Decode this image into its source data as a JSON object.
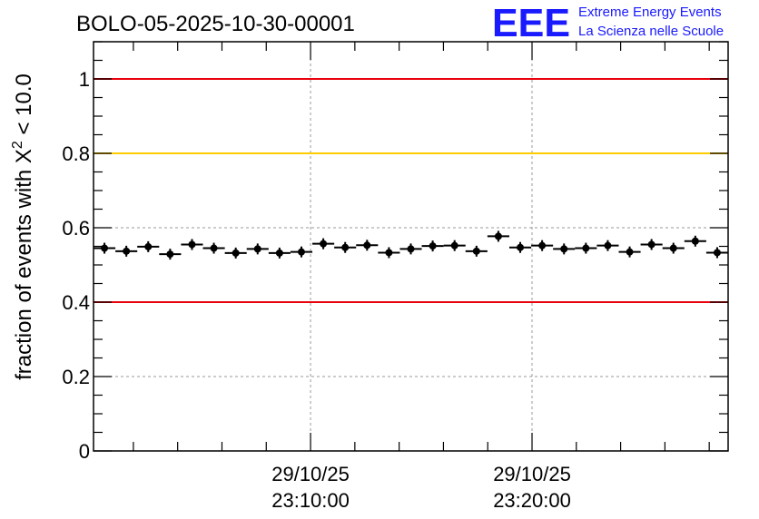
{
  "chart_data": {
    "type": "scatter",
    "title": "BOLO-05-2025-10-30-00001",
    "xlabel": "",
    "ylabel_main": "fraction of events with ",
    "ylabel_symbol": "X",
    "ylabel_sup": "2",
    "ylabel_tail": " < 10.0",
    "ylim": [
      0,
      1.1
    ],
    "xlim": [
      0,
      1
    ],
    "yticks": [
      0,
      0.2,
      0.4,
      0.6,
      0.8,
      1
    ],
    "ytick_labels": [
      "0",
      "0.2",
      "0.4",
      "0.6",
      "0.8",
      "1"
    ],
    "xticks": [
      {
        "pos": 0.342,
        "date": "29/10/25",
        "time": "23:10:00"
      },
      {
        "pos": 0.691,
        "date": "29/10/25",
        "time": "23:20:00"
      }
    ],
    "grid": true,
    "reference_lines": [
      {
        "y": 1.0,
        "color": "#e8000b"
      },
      {
        "y": 0.8,
        "color": "#ffcc00"
      },
      {
        "y": 0.4,
        "color": "#e8000b"
      }
    ],
    "series": [
      {
        "name": "fraction",
        "values": [
          0.545,
          0.537,
          0.549,
          0.529,
          0.555,
          0.545,
          0.532,
          0.543,
          0.532,
          0.535,
          0.557,
          0.547,
          0.553,
          0.533,
          0.543,
          0.551,
          0.552,
          0.537,
          0.577,
          0.547,
          0.552,
          0.543,
          0.545,
          0.552,
          0.535,
          0.555,
          0.545,
          0.564,
          0.533
        ]
      }
    ]
  },
  "logo": {
    "mark": "EEE",
    "line1": "Extreme Energy Events",
    "line2": "La Scienza nelle Scuole",
    "color": "#1a1aff"
  }
}
